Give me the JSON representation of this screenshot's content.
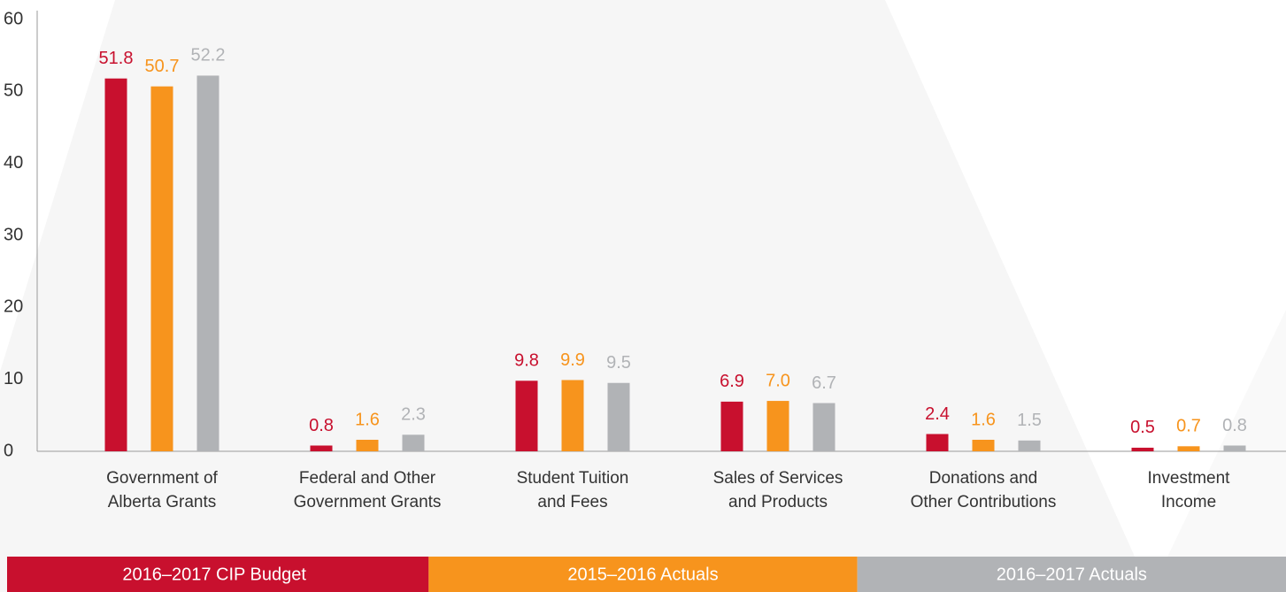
{
  "chart_data": {
    "type": "bar",
    "categories": [
      [
        "Government of",
        "Alberta Grants"
      ],
      [
        "Federal and Other",
        "Government Grants"
      ],
      [
        "Student Tuition",
        "and Fees"
      ],
      [
        "Sales of Services",
        "and Products"
      ],
      [
        "Donations and",
        "Other Contributions"
      ],
      [
        "Investment",
        "Income"
      ]
    ],
    "series": [
      {
        "name": "2016–2017 CIP Budget",
        "color": "#c8102e",
        "values": [
          51.8,
          0.8,
          9.8,
          6.9,
          2.4,
          0.5
        ]
      },
      {
        "name": "2015–2016 Actuals",
        "color": "#f7941d",
        "values": [
          50.7,
          1.6,
          9.9,
          7,
          1.6,
          0.7
        ],
        "value_labels": [
          "50.7",
          "1.6",
          "9.9",
          "7.0",
          "1.6",
          "0.7"
        ]
      },
      {
        "name": "2016–2017 Actuals",
        "color": "#b1b3b6",
        "values": [
          52.2,
          2.3,
          9.5,
          6.7,
          1.5,
          0.8
        ]
      }
    ],
    "ylim": [
      0,
      60
    ],
    "yticks": [
      0,
      10,
      20,
      30,
      40,
      50,
      60
    ],
    "legend": "bottom"
  }
}
